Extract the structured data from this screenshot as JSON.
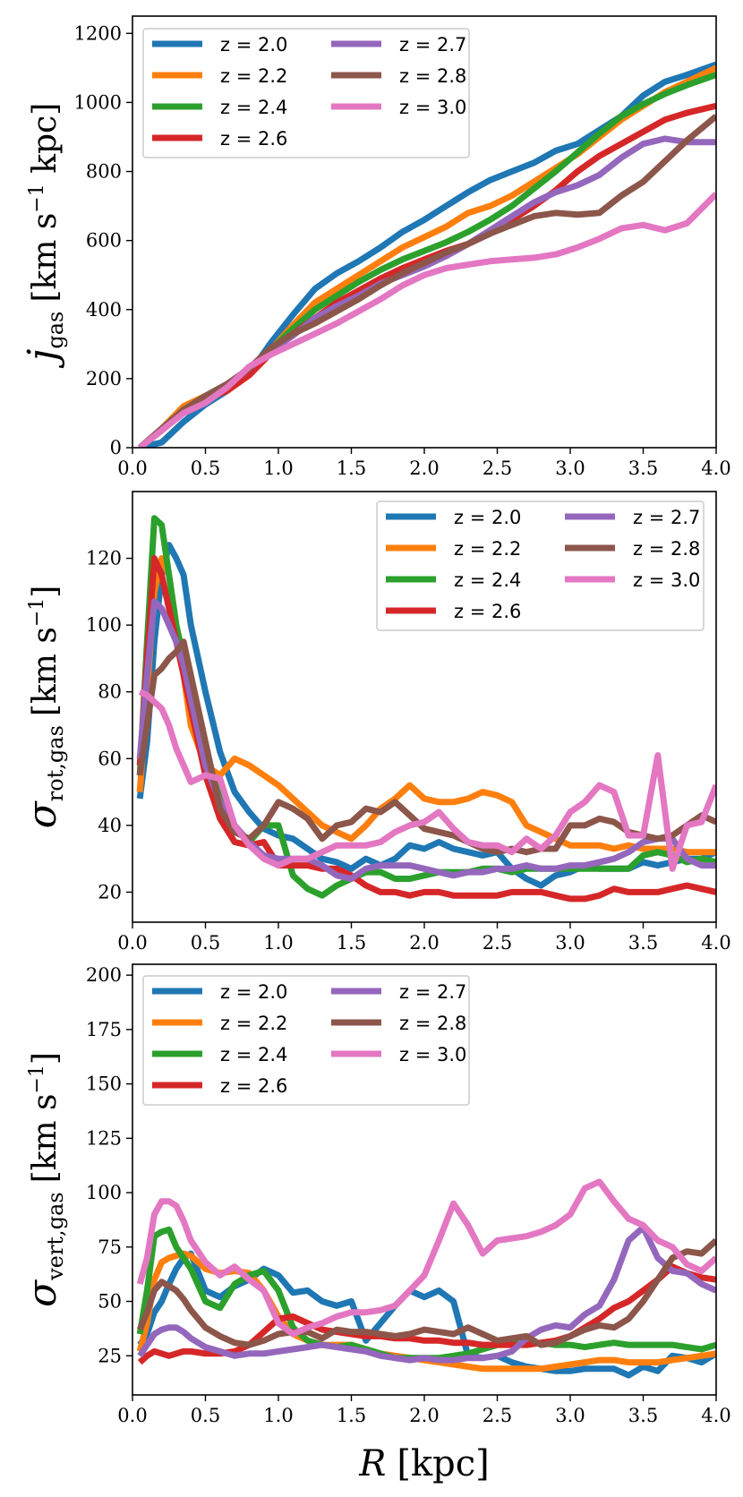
{
  "chart_data": [
    {
      "type": "line",
      "ylabel": "j_gas [km s⁻¹ kpc]",
      "ylabel_main": "j",
      "ylabel_sub": "gas",
      "ylabel_unit": "[km s",
      "ylabel_sup": "−1",
      "ylabel_tail": " kpc]",
      "xlim": [
        0.0,
        4.0
      ],
      "ylim": [
        0,
        1250
      ],
      "xticks": [
        0.0,
        0.5,
        1.0,
        1.5,
        2.0,
        2.5,
        3.0,
        3.5,
        4.0
      ],
      "xtick_labels": [
        "0.0",
        "0.5",
        "1.0",
        "1.5",
        "2.0",
        "2.5",
        "3.0",
        "3.5",
        "4.0"
      ],
      "yticks": [
        0,
        200,
        400,
        600,
        800,
        1000,
        1200
      ],
      "ytick_labels": [
        "0",
        "200",
        "400",
        "600",
        "800",
        "1000",
        "1200"
      ],
      "legend": "upper-left",
      "x": [
        0.05,
        0.2,
        0.35,
        0.5,
        0.65,
        0.8,
        0.95,
        1.1,
        1.25,
        1.4,
        1.55,
        1.7,
        1.85,
        2.0,
        2.15,
        2.3,
        2.45,
        2.6,
        2.75,
        2.9,
        3.05,
        3.2,
        3.35,
        3.5,
        3.65,
        3.8,
        4.0
      ],
      "series": [
        {
          "name": "z = 2.0",
          "color": "#1f77b4",
          "values": [
            0,
            15,
            75,
            125,
            165,
            215,
            305,
            385,
            460,
            505,
            540,
            580,
            625,
            660,
            700,
            740,
            775,
            800,
            825,
            860,
            880,
            920,
            960,
            1020,
            1060,
            1080,
            1110
          ]
        },
        {
          "name": "z = 2.2",
          "color": "#ff7f0e",
          "values": [
            0,
            55,
            120,
            150,
            175,
            225,
            285,
            355,
            420,
            460,
            500,
            540,
            580,
            610,
            640,
            680,
            700,
            730,
            770,
            810,
            850,
            900,
            950,
            990,
            1030,
            1060,
            1100
          ]
        },
        {
          "name": "z = 2.4",
          "color": "#2ca02c",
          "values": [
            0,
            50,
            110,
            145,
            180,
            225,
            285,
            345,
            400,
            440,
            480,
            515,
            545,
            570,
            595,
            625,
            660,
            700,
            750,
            800,
            855,
            910,
            960,
            995,
            1025,
            1050,
            1080
          ]
        },
        {
          "name": "z = 2.6",
          "color": "#d62728",
          "values": [
            0,
            50,
            105,
            140,
            165,
            210,
            275,
            330,
            375,
            420,
            455,
            490,
            520,
            545,
            570,
            590,
            620,
            660,
            700,
            745,
            800,
            845,
            880,
            915,
            950,
            970,
            990
          ]
        },
        {
          "name": "z = 2.7",
          "color": "#9467bd",
          "values": [
            0,
            55,
            105,
            140,
            180,
            230,
            280,
            325,
            375,
            410,
            440,
            475,
            500,
            525,
            555,
            590,
            630,
            670,
            710,
            740,
            760,
            790,
            840,
            880,
            895,
            885,
            885
          ]
        },
        {
          "name": "z = 2.8",
          "color": "#8c564b",
          "values": [
            0,
            55,
            110,
            150,
            185,
            230,
            290,
            330,
            360,
            395,
            430,
            470,
            505,
            535,
            565,
            590,
            620,
            645,
            670,
            680,
            675,
            680,
            730,
            770,
            830,
            890,
            960
          ]
        },
        {
          "name": "z = 3.0",
          "color": "#e377c2",
          "values": [
            0,
            50,
            100,
            130,
            175,
            235,
            270,
            300,
            330,
            360,
            395,
            430,
            470,
            500,
            520,
            530,
            540,
            545,
            550,
            560,
            580,
            605,
            635,
            645,
            630,
            650,
            735
          ]
        }
      ]
    },
    {
      "type": "line",
      "ylabel": "σ_rot,gas [km s⁻¹]",
      "ylabel_main": "σ",
      "ylabel_sub": "rot,gas",
      "ylabel_unit": "[km s",
      "ylabel_sup": "−1",
      "ylabel_tail": "]",
      "xlim": [
        0.0,
        4.0
      ],
      "ylim": [
        11,
        140
      ],
      "xticks": [
        0.0,
        0.5,
        1.0,
        1.5,
        2.0,
        2.5,
        3.0,
        3.5,
        4.0
      ],
      "xtick_labels": [
        "0.0",
        "0.5",
        "1.0",
        "1.5",
        "2.0",
        "2.5",
        "3.0",
        "3.5",
        "4.0"
      ],
      "yticks": [
        20,
        40,
        60,
        80,
        100,
        120
      ],
      "ytick_labels": [
        "20",
        "40",
        "60",
        "80",
        "100",
        "120"
      ],
      "legend": "upper-right",
      "x": [
        0.05,
        0.1,
        0.15,
        0.2,
        0.25,
        0.3,
        0.35,
        0.4,
        0.5,
        0.6,
        0.7,
        0.8,
        0.9,
        1.0,
        1.1,
        1.2,
        1.3,
        1.4,
        1.5,
        1.6,
        1.7,
        1.8,
        1.9,
        2.0,
        2.1,
        2.2,
        2.3,
        2.4,
        2.5,
        2.6,
        2.7,
        2.8,
        2.9,
        3.0,
        3.1,
        3.2,
        3.3,
        3.4,
        3.5,
        3.6,
        3.7,
        3.8,
        3.9,
        4.0
      ],
      "series": [
        {
          "name": "z = 2.0",
          "color": "#1f77b4",
          "values": [
            48,
            65,
            95,
            115,
            124,
            120,
            115,
            100,
            80,
            62,
            50,
            44,
            39,
            37,
            36,
            33,
            30,
            29,
            27,
            30,
            28,
            30,
            34,
            33,
            35,
            33,
            32,
            31,
            32,
            27,
            24,
            22,
            25,
            26,
            28,
            27,
            27,
            27,
            29,
            28,
            29,
            30,
            30,
            32
          ]
        },
        {
          "name": "z = 2.2",
          "color": "#ff7f0e",
          "values": [
            50,
            80,
            110,
            120,
            115,
            100,
            85,
            70,
            58,
            55,
            60,
            58,
            55,
            52,
            48,
            44,
            40,
            38,
            36,
            40,
            45,
            48,
            52,
            48,
            47,
            47,
            48,
            50,
            49,
            47,
            40,
            38,
            36,
            34,
            34,
            34,
            33,
            34,
            33,
            33,
            33,
            32,
            32,
            32
          ]
        },
        {
          "name": "z = 2.4",
          "color": "#2ca02c",
          "values": [
            55,
            95,
            132,
            130,
            115,
            100,
            90,
            80,
            60,
            50,
            40,
            35,
            40,
            40,
            25,
            21,
            19,
            22,
            24,
            26,
            26,
            24,
            24,
            25,
            26,
            26,
            26,
            27,
            27,
            26,
            27,
            27,
            27,
            27,
            27,
            27,
            27,
            27,
            31,
            32,
            31,
            29,
            30,
            29
          ]
        },
        {
          "name": "z = 2.6",
          "color": "#d62728",
          "values": [
            58,
            90,
            120,
            115,
            105,
            95,
            85,
            75,
            55,
            42,
            35,
            34,
            35,
            28,
            28,
            28,
            27,
            27,
            25,
            22,
            20,
            20,
            19,
            20,
            20,
            19,
            19,
            19,
            19,
            20,
            20,
            20,
            19,
            18,
            18,
            19,
            21,
            20,
            20,
            20,
            21,
            22,
            21,
            20
          ]
        },
        {
          "name": "z = 2.7",
          "color": "#9467bd",
          "values": [
            60,
            85,
            107,
            105,
            100,
            95,
            88,
            78,
            58,
            47,
            40,
            35,
            31,
            30,
            30,
            30,
            28,
            25,
            24,
            27,
            28,
            28,
            28,
            27,
            26,
            25,
            26,
            26,
            27,
            27,
            28,
            27,
            27,
            28,
            28,
            29,
            30,
            32,
            35,
            36,
            36,
            30,
            28,
            28
          ]
        },
        {
          "name": "z = 2.8",
          "color": "#8c564b",
          "values": [
            55,
            70,
            85,
            87,
            90,
            92,
            95,
            85,
            65,
            45,
            38,
            36,
            40,
            47,
            45,
            42,
            36,
            40,
            41,
            45,
            44,
            47,
            43,
            39,
            38,
            37,
            35,
            33,
            32,
            33,
            32,
            33,
            33,
            40,
            40,
            42,
            41,
            38,
            37,
            36,
            37,
            40,
            43,
            41
          ]
        },
        {
          "name": "z = 3.0",
          "color": "#e377c2",
          "values": [
            80,
            79,
            77,
            75,
            70,
            63,
            58,
            53,
            55,
            54,
            40,
            34,
            30,
            28,
            30,
            30,
            32,
            34,
            34,
            34,
            35,
            38,
            40,
            41,
            44,
            39,
            35,
            34,
            34,
            32,
            36,
            33,
            37,
            44,
            47,
            52,
            50,
            37,
            37,
            61,
            27,
            40,
            41,
            52
          ]
        }
      ]
    },
    {
      "type": "line",
      "ylabel": "σ_vert,gas [km s⁻¹]",
      "ylabel_main": "σ",
      "ylabel_sub": "vert,gas",
      "ylabel_unit": "[km s",
      "ylabel_sup": "−1",
      "ylabel_tail": "]",
      "xlabel": "R [kpc]",
      "xlabel_main": "R",
      "xlabel_unit": "[kpc]",
      "xlim": [
        0.0,
        4.0
      ],
      "ylim": [
        7,
        205
      ],
      "xticks": [
        0.0,
        0.5,
        1.0,
        1.5,
        2.0,
        2.5,
        3.0,
        3.5,
        4.0
      ],
      "xtick_labels": [
        "0.0",
        "0.5",
        "1.0",
        "1.5",
        "2.0",
        "2.5",
        "3.0",
        "3.5",
        "4.0"
      ],
      "yticks": [
        25,
        50,
        75,
        100,
        125,
        150,
        175,
        200
      ],
      "ytick_labels": [
        "25",
        "50",
        "75",
        "100",
        "125",
        "150",
        "175",
        "200"
      ],
      "legend": "upper-left",
      "x": [
        0.05,
        0.1,
        0.15,
        0.2,
        0.25,
        0.3,
        0.35,
        0.4,
        0.5,
        0.6,
        0.7,
        0.8,
        0.9,
        1.0,
        1.1,
        1.2,
        1.3,
        1.4,
        1.5,
        1.6,
        1.7,
        1.8,
        1.9,
        2.0,
        2.1,
        2.2,
        2.3,
        2.4,
        2.5,
        2.6,
        2.7,
        2.8,
        2.9,
        3.0,
        3.1,
        3.2,
        3.3,
        3.4,
        3.5,
        3.6,
        3.7,
        3.8,
        3.9,
        4.0
      ],
      "series": [
        {
          "name": "z = 2.0",
          "color": "#1f77b4",
          "values": [
            30,
            35,
            45,
            50,
            58,
            65,
            70,
            72,
            55,
            52,
            57,
            60,
            65,
            62,
            54,
            55,
            50,
            48,
            50,
            32,
            40,
            48,
            55,
            52,
            55,
            50,
            25,
            24,
            25,
            22,
            20,
            19,
            18,
            18,
            19,
            19,
            19,
            16,
            20,
            18,
            25,
            24,
            22,
            26
          ]
        },
        {
          "name": "z = 2.2",
          "color": "#ff7f0e",
          "values": [
            27,
            40,
            60,
            68,
            70,
            71,
            72,
            71,
            65,
            63,
            64,
            63,
            55,
            43,
            35,
            32,
            30,
            30,
            30,
            28,
            26,
            25,
            24,
            23,
            22,
            21,
            20,
            19,
            19,
            19,
            19,
            19,
            20,
            21,
            22,
            23,
            23,
            22,
            22,
            22,
            23,
            24,
            25,
            26
          ]
        },
        {
          "name": "z = 2.4",
          "color": "#2ca02c",
          "values": [
            35,
            55,
            80,
            82,
            83,
            75,
            70,
            65,
            50,
            47,
            58,
            62,
            64,
            55,
            38,
            32,
            30,
            29,
            30,
            28,
            26,
            24,
            24,
            24,
            24,
            25,
            26,
            28,
            30,
            31,
            30,
            31,
            30,
            30,
            29,
            30,
            31,
            30,
            30,
            30,
            30,
            29,
            28,
            30
          ]
        },
        {
          "name": "z = 2.6",
          "color": "#d62728",
          "values": [
            22,
            25,
            27,
            26,
            25,
            26,
            27,
            27,
            26,
            26,
            27,
            30,
            36,
            42,
            43,
            40,
            37,
            36,
            35,
            34,
            34,
            33,
            33,
            32,
            32,
            31,
            31,
            30,
            30,
            30,
            30,
            31,
            32,
            34,
            38,
            42,
            47,
            50,
            55,
            60,
            66,
            63,
            61,
            60
          ]
        },
        {
          "name": "z = 2.7",
          "color": "#9467bd",
          "values": [
            25,
            30,
            35,
            37,
            38,
            38,
            36,
            33,
            29,
            27,
            25,
            26,
            26,
            27,
            28,
            29,
            30,
            29,
            28,
            27,
            25,
            24,
            23,
            24,
            23,
            23,
            24,
            24,
            25,
            27,
            33,
            37,
            39,
            38,
            44,
            48,
            60,
            78,
            84,
            70,
            64,
            63,
            58,
            55
          ]
        },
        {
          "name": "z = 2.8",
          "color": "#8c564b",
          "values": [
            37,
            45,
            55,
            59,
            57,
            55,
            51,
            46,
            38,
            34,
            31,
            30,
            32,
            35,
            36,
            36,
            33,
            37,
            36,
            36,
            35,
            34,
            35,
            37,
            36,
            35,
            38,
            35,
            32,
            33,
            34,
            30,
            31,
            34,
            37,
            39,
            38,
            42,
            50,
            60,
            70,
            73,
            72,
            78
          ]
        },
        {
          "name": "z = 3.0",
          "color": "#e377c2",
          "values": [
            58,
            70,
            90,
            96,
            96,
            94,
            87,
            78,
            68,
            62,
            66,
            60,
            55,
            40,
            35,
            38,
            40,
            43,
            45,
            45,
            46,
            48,
            55,
            62,
            78,
            95,
            85,
            72,
            78,
            79,
            80,
            82,
            85,
            90,
            102,
            105,
            96,
            88,
            85,
            78,
            75,
            67,
            64,
            70
          ]
        }
      ]
    }
  ]
}
